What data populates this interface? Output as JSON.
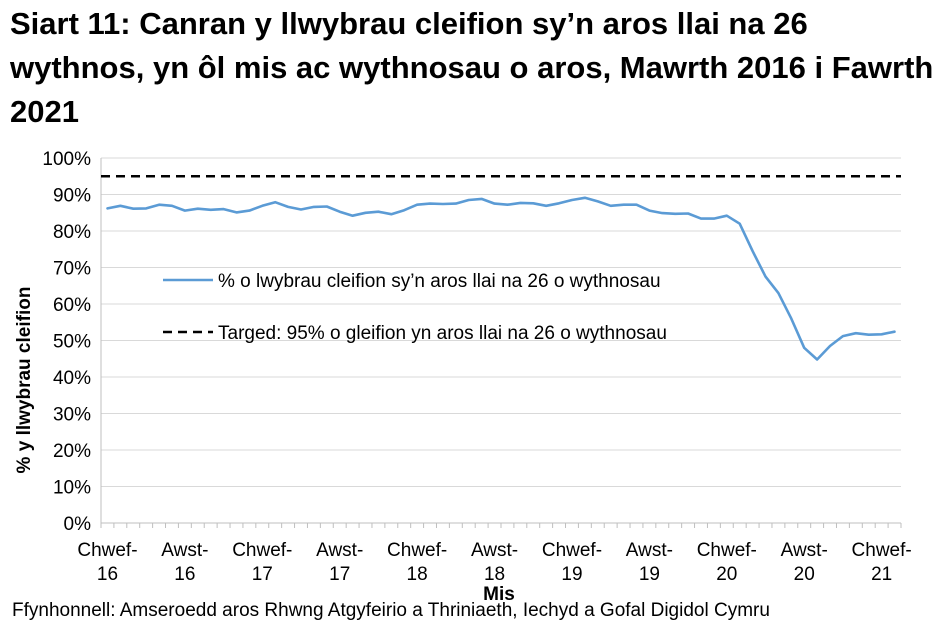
{
  "page": {
    "title": "Siart 11: Canran y llwybrau cleifion sy’n aros llai na 26 wythnos, yn ôl mis ac wythnosau o aros, Mawrth 2016 i Fawrth 2021",
    "source": "Ffynhonnell: Amseroedd aros Rhwng Atgyfeirio a Thriniaeth, Iechyd a Gofal Digidol Cymru"
  },
  "chart_data": {
    "type": "line",
    "title": "Siart 11: Canran y llwybrau cleifion sy’n aros llai na 26 wythnos, yn ôl mis ac wythnosau o aros, Mawrth 2016 i Fawrth 2021",
    "xlabel": "Mis",
    "ylabel": "% y llwybrau cleifion",
    "ylim": [
      0,
      100
    ],
    "y_ticks": [
      "0%",
      "10%",
      "20%",
      "30%",
      "40%",
      "50%",
      "60%",
      "70%",
      "80%",
      "90%",
      "100%"
    ],
    "x_tick_labels": [
      {
        "line1": "Chwef-",
        "line2": "16"
      },
      {
        "line1": "Awst-",
        "line2": "16"
      },
      {
        "line1": "Chwef-",
        "line2": "17"
      },
      {
        "line1": "Awst-",
        "line2": "17"
      },
      {
        "line1": "Chwef-",
        "line2": "18"
      },
      {
        "line1": "Awst-",
        "line2": "18"
      },
      {
        "line1": "Chwef-",
        "line2": "19"
      },
      {
        "line1": "Awst-",
        "line2": "19"
      },
      {
        "line1": "Chwef-",
        "line2": "20"
      },
      {
        "line1": "Awst-",
        "line2": "20"
      },
      {
        "line1": "Chwef-",
        "line2": "21"
      }
    ],
    "grid": true,
    "legend_position": "center-right",
    "series": [
      {
        "name": "% o lwybrau cleifion sy’n aros llai na 26 o wythnosau",
        "color": "#5B9BD5",
        "style": "solid",
        "values": [
          86.2,
          86.9,
          86.1,
          86.2,
          87.2,
          86.9,
          85.6,
          86.1,
          85.8,
          86.0,
          85.1,
          85.6,
          86.9,
          87.9,
          86.6,
          85.9,
          86.6,
          86.7,
          85.3,
          84.2,
          85.0,
          85.3,
          84.6,
          85.7,
          87.2,
          87.5,
          87.4,
          87.5,
          88.5,
          88.8,
          87.5,
          87.2,
          87.7,
          87.6,
          86.9,
          87.6,
          88.5,
          89.1,
          88.1,
          86.9,
          87.2,
          87.2,
          85.6,
          84.9,
          84.7,
          84.8,
          83.4,
          83.4,
          84.2,
          82.0,
          74.5,
          67.5,
          63.0,
          56.0,
          48.0,
          44.8,
          48.5,
          51.2,
          52.0,
          51.6,
          51.7,
          52.4
        ]
      },
      {
        "name": "Targed: 95% o gleifion yn aros llai na 26 o wythnosau",
        "color": "#000000",
        "style": "dashed",
        "values": [
          95
        ]
      }
    ]
  }
}
